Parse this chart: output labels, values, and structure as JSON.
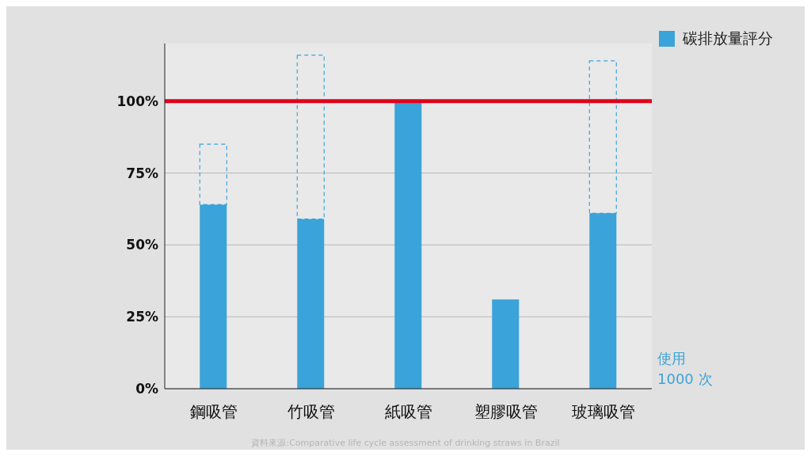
{
  "chart_data": {
    "type": "bar",
    "stacked": true,
    "categories": [
      "鋼吸管",
      "竹吸管",
      "紙吸管",
      "塑膠吸管",
      "玻璃吸管"
    ],
    "series": [
      {
        "name": "碳排放量評分",
        "color": "#3aa3d9",
        "values": [
          64,
          59,
          100,
          31,
          61
        ]
      },
      {
        "color": "#3aa3d9",
        "line_style": "dashed",
        "values": [
          21,
          57,
          null,
          null,
          53
        ]
      }
    ],
    "ylim": [
      0,
      120
    ],
    "yticks": [
      {
        "value": 0,
        "label": "0%"
      },
      {
        "value": 25,
        "label": "25%"
      },
      {
        "value": 50,
        "label": "50%"
      },
      {
        "value": 75,
        "label": "75%"
      },
      {
        "value": 100,
        "label": "100%"
      }
    ],
    "grid": "y",
    "legend": "top right",
    "ref_lines": [
      {
        "axis": "y",
        "value": 100,
        "color": "#e2001a"
      }
    ],
    "annotations": [
      "使用\n1000 次",
      "資料來源:Comparative life cycle assessment of drinking straws in Brazil"
    ]
  }
}
